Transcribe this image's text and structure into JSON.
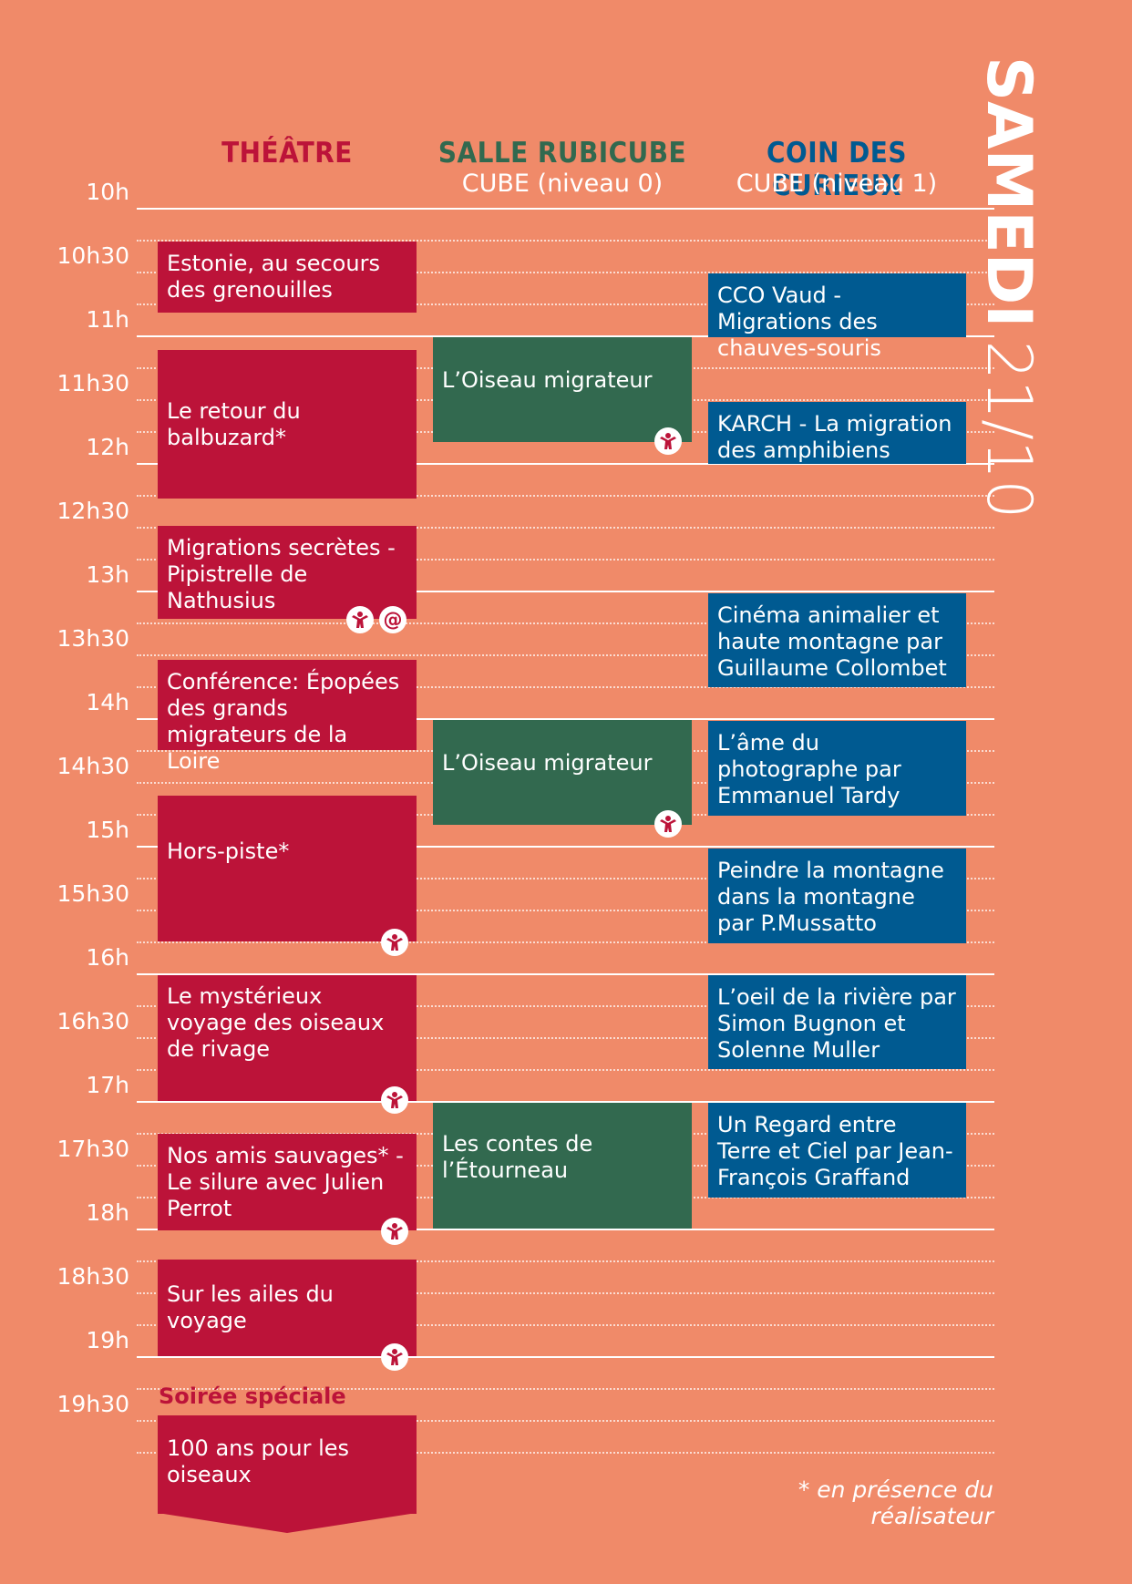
{
  "day_title": {
    "day": "SAMEDI",
    "date": "21/10"
  },
  "columns": [
    {
      "title": "THÉÂTRE",
      "subtitle": "",
      "color": "#BC1339"
    },
    {
      "title": "SALLE RUBICUBE",
      "subtitle": "CUBE (niveau 0)",
      "color": "#32694F"
    },
    {
      "title": "COIN DES CURIEUX",
      "subtitle": "CUBE (niveau 1)",
      "color": "#005A91"
    }
  ],
  "times": [
    "10h",
    "10h30",
    "11h",
    "11h30",
    "12h",
    "12h30",
    "13h",
    "13h30",
    "14h",
    "14h30",
    "15h",
    "15h30",
    "16h",
    "16h30",
    "17h",
    "17h30",
    "18h",
    "18h30",
    "19h",
    "19h30"
  ],
  "events": {
    "theatre": [
      "Estonie, au secours des grenouilles",
      "Le retour du balbuzard*",
      "Migrations secrètes - Pipistrelle de Nathusius",
      "Conférence: Épopées des grands migrateurs de la Loire",
      "Hors-piste*",
      "Le mystérieux voyage des oiseaux de rivage",
      "Nos amis sauvages* - Le silure avec Julien Perrot",
      "Sur les ailes du voyage",
      "100 ans pour les oiseaux"
    ],
    "rubicube": [
      "L’Oiseau migrateur",
      "L’Oiseau migrateur",
      "Les contes de l’Étourneau"
    ],
    "curieux": [
      "CCO Vaud - Migrations des chauves-souris",
      "KARCH - La migration des amphibiens",
      "Cinéma animalier et haute montagne  par Guillaume Collombet",
      "L’âme du photographe par Emmanuel Tardy",
      "Peindre la montagne dans la montagne par P.Mussatto",
      "L’oeil de la rivière par Simon Bugnon et Solenne Muller",
      "Un Regard entre Terre et Ciel par Jean-François Graffand"
    ]
  },
  "icons": {
    "family": "family-icon",
    "at": "@"
  },
  "special_label": "Soirée spéciale",
  "footnote": "* en présence du réalisateur",
  "colors": {
    "background": "#F08A69",
    "theatre": "#BC1339",
    "rubicube": "#32694F",
    "curieux": "#005A91"
  }
}
